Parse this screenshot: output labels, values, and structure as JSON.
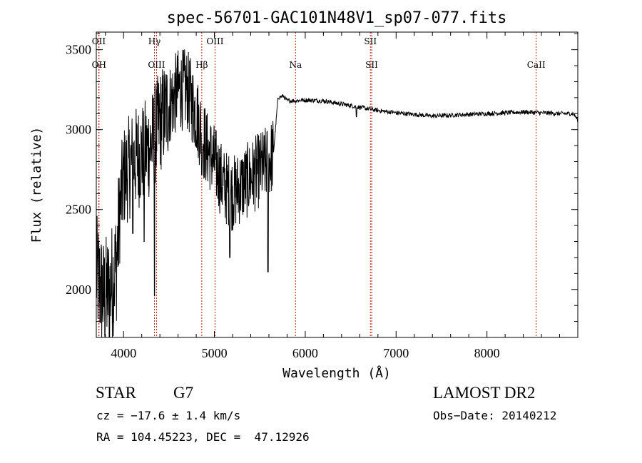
{
  "chart_data": {
    "type": "line",
    "title": "spec-56701-GAC101N48V1_sp07-077.fits",
    "xlabel": "Wavelength (Å)",
    "ylabel": "Flux (relative)",
    "xlim": [
      3700,
      9000
    ],
    "ylim": [
      1700,
      3610
    ],
    "x_ticks": [
      4000,
      5000,
      6000,
      7000,
      8000
    ],
    "x_tick_labels": [
      "4000",
      "5000",
      "6000",
      "7000",
      "8000"
    ],
    "y_ticks": [
      2000,
      2500,
      3000,
      3500
    ],
    "y_tick_labels": [
      "2000",
      "2500",
      "3000",
      "3500"
    ],
    "grid": false,
    "legend": "none",
    "series_color": "#000000",
    "line_marker_color": "#b22222",
    "continuum_anchors": [
      [
        3700,
        2100
      ],
      [
        3780,
        1950
      ],
      [
        3850,
        2000
      ],
      [
        3920,
        2150
      ],
      [
        3960,
        2500
      ],
      [
        4000,
        2700
      ],
      [
        4100,
        2800
      ],
      [
        4200,
        2850
      ],
      [
        4300,
        2900
      ],
      [
        4400,
        3050
      ],
      [
        4500,
        3150
      ],
      [
        4600,
        3250
      ],
      [
        4700,
        3250
      ],
      [
        4800,
        3100
      ],
      [
        4900,
        2900
      ],
      [
        5000,
        2800
      ],
      [
        5100,
        2650
      ],
      [
        5200,
        2600
      ],
      [
        5300,
        2650
      ],
      [
        5400,
        2700
      ],
      [
        5500,
        2750
      ],
      [
        5600,
        2800
      ],
      [
        5650,
        2850
      ],
      [
        5700,
        3200
      ],
      [
        5760,
        3210
      ],
      [
        5800,
        3180
      ],
      [
        6000,
        3185
      ],
      [
        6200,
        3180
      ],
      [
        6400,
        3160
      ],
      [
        6600,
        3140
      ],
      [
        6800,
        3120
      ],
      [
        7000,
        3105
      ],
      [
        7200,
        3095
      ],
      [
        7400,
        3085
      ],
      [
        7600,
        3090
      ],
      [
        7800,
        3095
      ],
      [
        8000,
        3100
      ],
      [
        8200,
        3105
      ],
      [
        8400,
        3110
      ],
      [
        8600,
        3105
      ],
      [
        8800,
        3100
      ],
      [
        8950,
        3100
      ],
      [
        9000,
        3060
      ]
    ],
    "absorption_dips": [
      [
        4340,
        1960
      ],
      [
        4102,
        2350
      ],
      [
        4227,
        2300
      ],
      [
        4861,
        2720
      ],
      [
        5170,
        2200
      ],
      [
        5590,
        2110
      ],
      [
        6563,
        3080
      ],
      [
        5890,
        3180
      ]
    ],
    "spectral_lines": [
      {
        "label": "OII",
        "wavelength": 3727,
        "row": 0
      },
      {
        "label": "OH",
        "wavelength": 3730,
        "row": 1
      },
      {
        "label": "Hγ",
        "wavelength": 4340,
        "row": 0
      },
      {
        "label": "OIII",
        "wavelength": 4363,
        "row": 1
      },
      {
        "label": "Hβ",
        "wavelength": 4861,
        "row": 1
      },
      {
        "label": "OIII",
        "wavelength": 5007,
        "row": 0
      },
      {
        "label": "Na",
        "wavelength": 5893,
        "row": 1
      },
      {
        "label": "SII",
        "wavelength": 6717,
        "row": 0
      },
      {
        "label": "SII",
        "wavelength": 6731,
        "row": 1
      },
      {
        "label": "CaII",
        "wavelength": 8542,
        "row": 1
      }
    ]
  },
  "info": {
    "class": "STAR",
    "subclass": "G7",
    "survey": "LAMOST DR2",
    "cz": "cz = −17.6 ± 1.4 km/s",
    "obs_date": "Obs−Date: 20140212",
    "coords": "RA = 104.45223, DEC =  47.12926"
  }
}
